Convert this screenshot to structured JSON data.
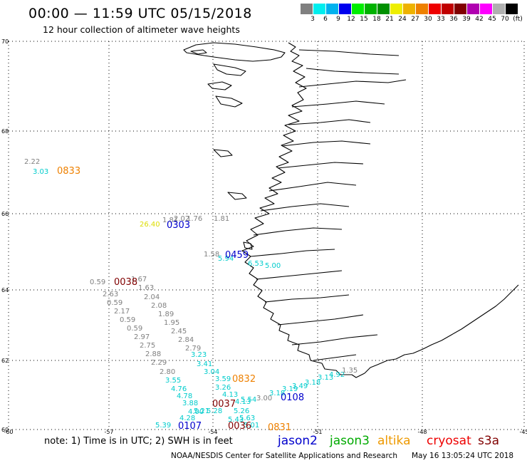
{
  "header": {
    "title": "00:00 — 11:59 UTC 05/15/2018",
    "subtitle": "12 hour collection of altimeter wave heights"
  },
  "colorbar": {
    "colors": [
      "#808080",
      "#00eeee",
      "#00b2ee",
      "#0000ee",
      "#00ee00",
      "#00b200",
      "#009000",
      "#eeee00",
      "#eeb200",
      "#ee8000",
      "#ee0000",
      "#c00000",
      "#800000",
      "#b000b0",
      "#ff00ff",
      "#b0b0b0",
      "#000000"
    ],
    "labels": [
      "3",
      "6",
      "9",
      "12",
      "15",
      "18",
      "21",
      "24",
      "27",
      "30",
      "33",
      "36",
      "39",
      "42",
      "45",
      "70",
      "(ft)"
    ]
  },
  "axes": {
    "lat_labels": [
      "70",
      "68",
      "66",
      "64",
      "62",
      "60"
    ],
    "lon_labels": [
      "-60",
      "-57",
      "-54",
      "-51",
      "-48",
      "-45"
    ]
  },
  "wave_heights": [
    {
      "text": "2.22",
      "color": "#808080"
    },
    {
      "text": "3.03",
      "color": "#00cccc"
    },
    {
      "text": "26.40",
      "color": "#dddd00"
    },
    {
      "text": "1.81",
      "color": "#808080"
    },
    {
      "text": "2.02",
      "color": "#808080"
    },
    {
      "text": "1.76",
      "color": "#808080"
    },
    {
      "text": "1.81",
      "color": "#808080"
    },
    {
      "text": "1.58",
      "color": "#808080"
    },
    {
      "text": "5.94",
      "color": "#00cccc"
    },
    {
      "text": "6.53",
      "color": "#00cccc"
    },
    {
      "text": "5.00",
      "color": "#00cccc"
    },
    {
      "text": "0.59",
      "color": "#808080"
    },
    {
      "text": "1.67",
      "color": "#808080"
    },
    {
      "text": "1.63",
      "color": "#808080"
    },
    {
      "text": "2.63",
      "color": "#808080"
    },
    {
      "text": "2.04",
      "color": "#808080"
    },
    {
      "text": "0.59",
      "color": "#808080"
    },
    {
      "text": "2.08",
      "color": "#808080"
    },
    {
      "text": "2.17",
      "color": "#808080"
    },
    {
      "text": "1.89",
      "color": "#808080"
    },
    {
      "text": "0.59",
      "color": "#808080"
    },
    {
      "text": "1.95",
      "color": "#808080"
    },
    {
      "text": "0.59",
      "color": "#808080"
    },
    {
      "text": "2.45",
      "color": "#808080"
    },
    {
      "text": "2.97",
      "color": "#808080"
    },
    {
      "text": "2.84",
      "color": "#808080"
    },
    {
      "text": "2.75",
      "color": "#808080"
    },
    {
      "text": "2.79",
      "color": "#808080"
    },
    {
      "text": "2.88",
      "color": "#808080"
    },
    {
      "text": "3.23",
      "color": "#00cccc"
    },
    {
      "text": "2.29",
      "color": "#808080"
    },
    {
      "text": "3.41",
      "color": "#00cccc"
    },
    {
      "text": "2.80",
      "color": "#808080"
    },
    {
      "text": "3.04",
      "color": "#00cccc"
    },
    {
      "text": "3.55",
      "color": "#00cccc"
    },
    {
      "text": "3.59",
      "color": "#00cccc"
    },
    {
      "text": "4.76",
      "color": "#00cccc"
    },
    {
      "text": "3.26",
      "color": "#00cccc"
    },
    {
      "text": "4.78",
      "color": "#00cccc"
    },
    {
      "text": "4.13",
      "color": "#00cccc"
    },
    {
      "text": "3.88",
      "color": "#00cccc"
    },
    {
      "text": "4.13",
      "color": "#00cccc"
    },
    {
      "text": "4.00",
      "color": "#00cccc"
    },
    {
      "text": "5.54",
      "color": "#00cccc"
    },
    {
      "text": "5.21",
      "color": "#00cccc"
    },
    {
      "text": "5.28",
      "color": "#00cccc"
    },
    {
      "text": "5.26",
      "color": "#00cccc"
    },
    {
      "text": "4.28",
      "color": "#00cccc"
    },
    {
      "text": "5.43",
      "color": "#00cccc"
    },
    {
      "text": "5.63",
      "color": "#00cccc"
    },
    {
      "text": "5.39",
      "color": "#00cccc"
    },
    {
      "text": "5.01",
      "color": "#00cccc"
    },
    {
      "text": "3.00",
      "color": "#808080"
    },
    {
      "text": "3.18",
      "color": "#00cccc"
    },
    {
      "text": "3.19",
      "color": "#00cccc"
    },
    {
      "text": "3.49",
      "color": "#00cccc"
    },
    {
      "text": "3.18",
      "color": "#00cccc"
    },
    {
      "text": "3.13",
      "color": "#00cccc"
    },
    {
      "text": "4.92",
      "color": "#00cccc"
    },
    {
      "text": "1.35",
      "color": "#808080"
    }
  ],
  "pass_labels": [
    {
      "text": "0833",
      "color": "#ee8000"
    },
    {
      "text": "0303",
      "color": "#0000cc"
    },
    {
      "text": "0459",
      "color": "#0000cc"
    },
    {
      "text": "0038",
      "color": "#800000"
    },
    {
      "text": "0832",
      "color": "#ee8000"
    },
    {
      "text": "0108",
      "color": "#0000cc"
    },
    {
      "text": "0037",
      "color": "#800000"
    },
    {
      "text": "0107",
      "color": "#0000cc"
    },
    {
      "text": "0036",
      "color": "#800000"
    },
    {
      "text": "0831",
      "color": "#ee8000"
    }
  ],
  "footer": {
    "note": "note: 1) Time is in UTC; 2) SWH is in feet",
    "satellites": [
      {
        "name": "jason2",
        "color": "#0000cc"
      },
      {
        "name": "jason3",
        "color": "#00aa00"
      },
      {
        "name": "altika",
        "color": "#ee9900"
      },
      {
        "name": "cryosat",
        "color": "#ee0000"
      },
      {
        "name": "s3a",
        "color": "#800000"
      }
    ],
    "credit": "NOAA/NESDIS Center for Satellite Applications and Research",
    "timestamp": "May 16 13:05:24 UTC 2018"
  }
}
